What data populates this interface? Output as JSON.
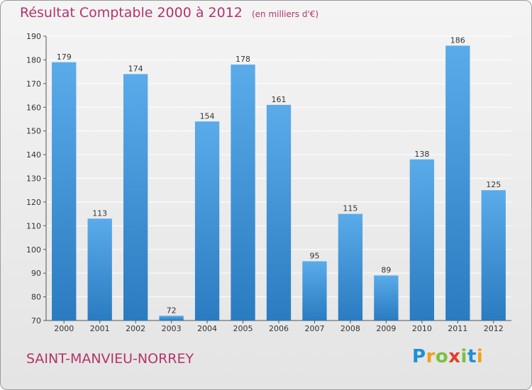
{
  "header": {
    "title": "Résultat Comptable 2000 à 2012",
    "unit": "(en milliers d'€)"
  },
  "footer": {
    "town": "SAINT-MANVIEU-NORREY",
    "logo_letters": [
      "P",
      "r",
      "o",
      "x",
      "i",
      "t",
      "i"
    ]
  },
  "colors": {
    "bar_light": "#5aabea",
    "bar_dark": "#2a7bc0",
    "accent": "#b5336d"
  },
  "chart_data": {
    "type": "bar",
    "title": "Résultat Comptable 2000 à 2012",
    "ylabel": "en milliers d'€",
    "xlabel": "",
    "categories": [
      "2000",
      "2001",
      "2002",
      "2003",
      "2004",
      "2005",
      "2006",
      "2007",
      "2008",
      "2009",
      "2010",
      "2011",
      "2012"
    ],
    "values": [
      179,
      113,
      174,
      72,
      154,
      178,
      161,
      95,
      115,
      89,
      138,
      186,
      125
    ],
    "ylim": [
      70,
      190
    ],
    "yticks": [
      70,
      80,
      90,
      100,
      110,
      120,
      130,
      140,
      150,
      160,
      170,
      180,
      190
    ],
    "grid": true
  }
}
